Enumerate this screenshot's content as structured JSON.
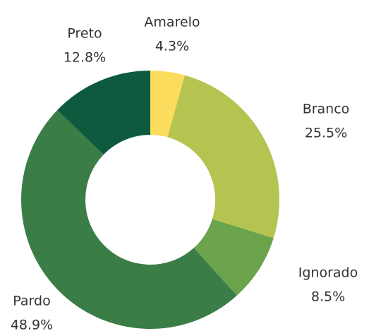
{
  "chart_data": {
    "type": "pie",
    "categories": [
      "Amarelo",
      "Branco",
      "Ignorado",
      "Pardo",
      "Preto"
    ],
    "values": [
      4.3,
      25.5,
      8.5,
      48.9,
      12.8
    ],
    "value_labels": [
      "4.3%",
      "25.5%",
      "8.5%",
      "48.9%",
      "12.8%"
    ],
    "colors": [
      "#fcdc5c",
      "#b5c351",
      "#6aa34c",
      "#3a7d47",
      "#0d5a3f"
    ]
  }
}
